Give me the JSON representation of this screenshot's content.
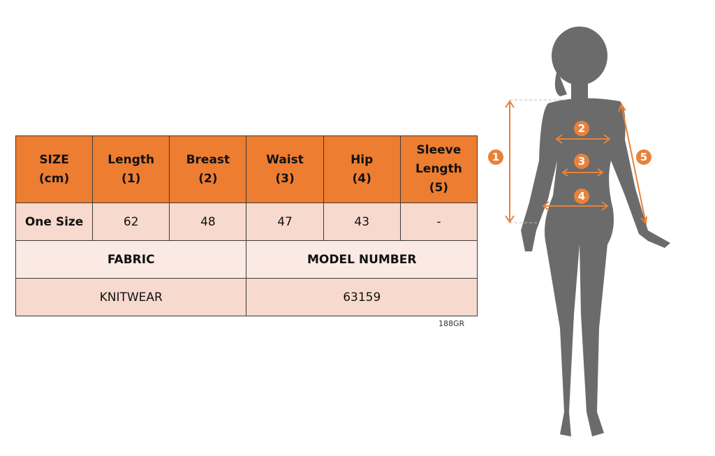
{
  "table": {
    "headers": [
      [
        "SIZE",
        "(cm)"
      ],
      [
        "Length",
        "(1)"
      ],
      [
        "Breast",
        "(2)"
      ],
      [
        "Waist",
        "(3)"
      ],
      [
        "Hip",
        "(4)"
      ],
      [
        "Sleeve",
        "Length",
        "(5)"
      ]
    ],
    "size_row": [
      "One Size",
      "62",
      "48",
      "47",
      "43",
      "-"
    ],
    "fabric_label": "FABRIC",
    "model_label": "MODEL NUMBER",
    "fabric_value": "KNITWEAR",
    "model_value": "63159"
  },
  "code": "188GR",
  "figure": {
    "markers": [
      "1",
      "2",
      "3",
      "4",
      "5"
    ]
  },
  "colors": {
    "header": "#ED7D31",
    "row": "#F8D9CE",
    "row_alt": "#FBEAE4",
    "silhouette": "#6b6b6b"
  }
}
